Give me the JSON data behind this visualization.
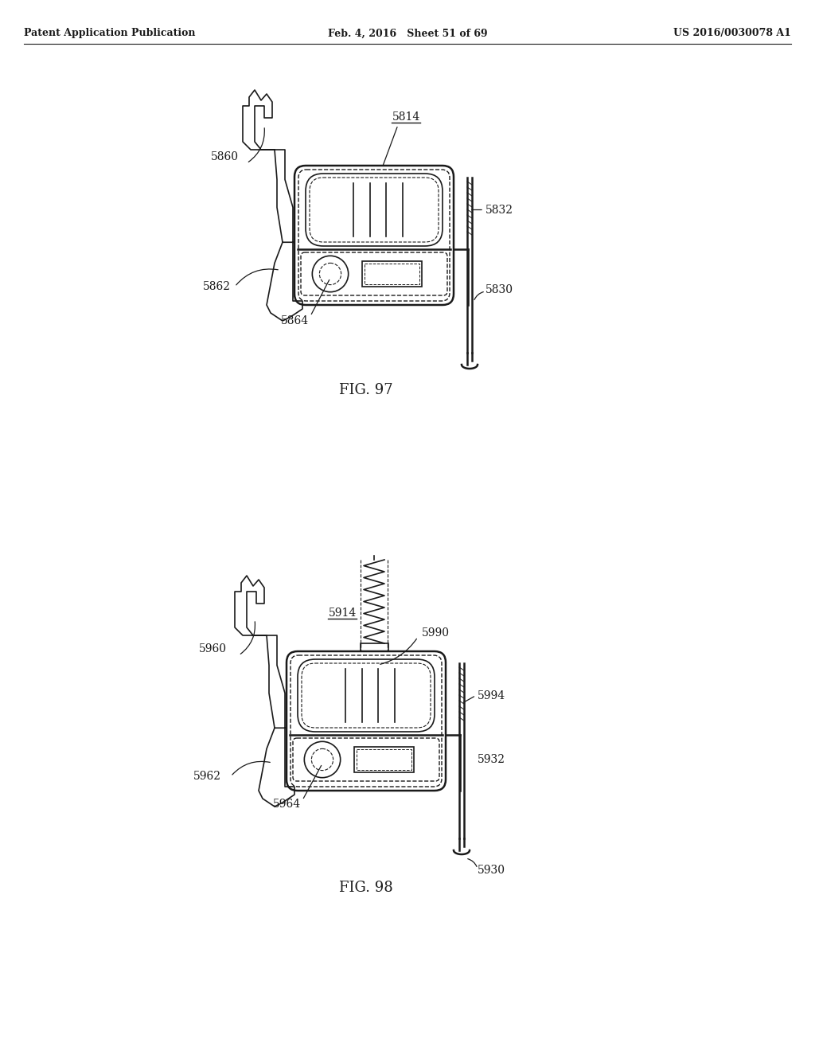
{
  "background_color": "#ffffff",
  "header_left": "Patent Application Publication",
  "header_mid": "Feb. 4, 2016   Sheet 51 of 69",
  "header_right": "US 2016/0030078 A1",
  "fig97_label": "FIG. 97",
  "fig98_label": "FIG. 98",
  "line_color": "#1a1a1a",
  "text_color": "#1a1a1a",
  "lw_outer": 1.8,
  "lw_inner": 1.0,
  "lw_detail": 1.2,
  "fontsize_label": 10,
  "fontsize_caption": 13,
  "fontsize_header": 9
}
